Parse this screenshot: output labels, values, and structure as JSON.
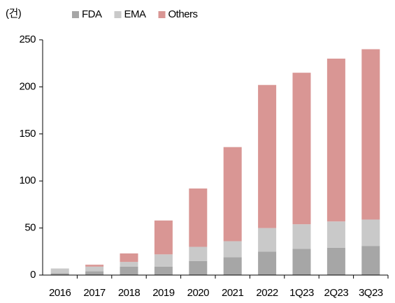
{
  "chart_data": {
    "type": "stacked_bar",
    "y_label": "(건)",
    "categories": [
      "2016",
      "2017",
      "2018",
      "2019",
      "2020",
      "2021",
      "2022",
      "1Q23",
      "2Q23",
      "3Q23"
    ],
    "series": [
      {
        "name": "FDA",
        "color": "#a6a6a6",
        "values": [
          2,
          4,
          9,
          9,
          15,
          19,
          25,
          28,
          29,
          31
        ]
      },
      {
        "name": "EMA",
        "color": "#c9c9c9",
        "values": [
          5,
          5,
          5,
          13,
          15,
          17,
          25,
          26,
          28,
          28
        ]
      },
      {
        "name": "Others",
        "color": "#d99694",
        "values": [
          0,
          2,
          9,
          36,
          62,
          100,
          152,
          161,
          173,
          181
        ]
      }
    ],
    "ylim": [
      0,
      250
    ],
    "yticks": [
      0,
      50,
      100,
      150,
      200,
      250
    ],
    "grid": false,
    "legend": "top"
  }
}
